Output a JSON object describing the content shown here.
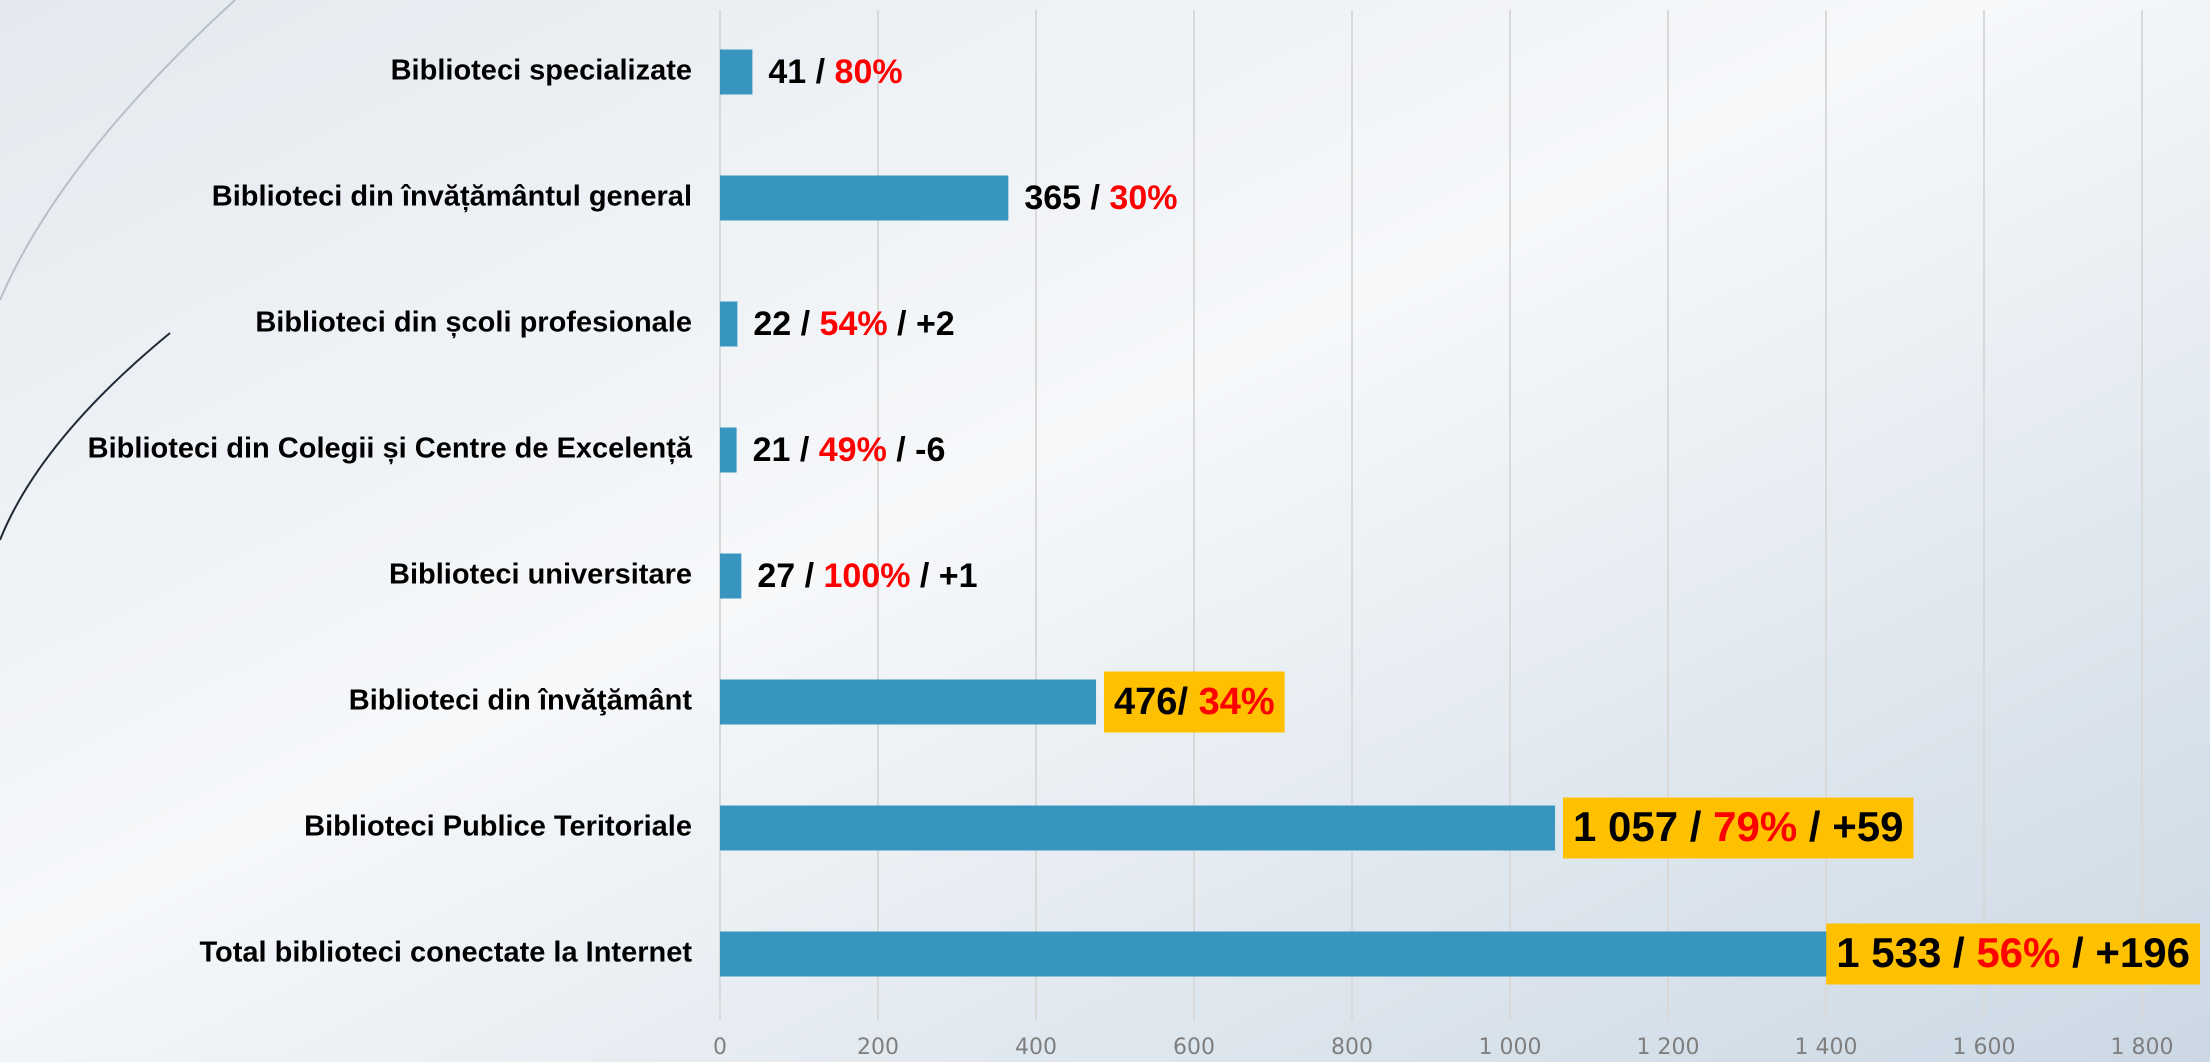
{
  "chart_data": {
    "type": "hbar",
    "categories": [
      "Biblioteci specializate",
      "Biblioteci din învățământul general",
      "Biblioteci din școli profesionale",
      "Biblioteci din Colegii și Centre de Excelență",
      "Biblioteci universitare",
      "Biblioteci din învăţământ",
      "Biblioteci Publice Teritoriale",
      "Total  biblioteci conectate la Internet"
    ],
    "values": [
      41,
      365,
      22,
      21,
      27,
      476,
      1057,
      1533
    ],
    "value_labels": [
      "41",
      "365",
      "22",
      "21",
      "27",
      "476",
      "1 057",
      "1 533"
    ],
    "label_suffixes": [
      [
        {
          "text": " / "
        },
        {
          "text": "80%",
          "color": "#ff0000"
        }
      ],
      [
        {
          "text": " / "
        },
        {
          "text": "30%",
          "color": "#ff0000"
        }
      ],
      [
        {
          "text": " / "
        },
        {
          "text": "54%",
          "color": "#ff0000"
        },
        {
          "text": " / +2"
        }
      ],
      [
        {
          "text": " / "
        },
        {
          "text": "49%",
          "color": "#ff0000"
        },
        {
          "text": " / -6"
        }
      ],
      [
        {
          "text": " / "
        },
        {
          "text": "100%",
          "color": "#ff0000"
        },
        {
          "text": " / +1"
        }
      ],
      [
        {
          "text": "/ "
        },
        {
          "text": "34%",
          "color": "#ff0000"
        }
      ],
      [
        {
          "text": " / "
        },
        {
          "text": "79%",
          "color": "#ff0000"
        },
        {
          "text": " / +59"
        }
      ],
      [
        {
          "text": " / "
        },
        {
          "text": "56%",
          "color": "#ff0000"
        },
        {
          "text": " / +196"
        }
      ]
    ],
    "highlight": [
      false,
      false,
      false,
      false,
      false,
      true,
      true,
      true
    ],
    "highlight_color": "#ffc000",
    "color": "#3795bf",
    "xlim": [
      0,
      1800
    ],
    "xticks": [
      0,
      200,
      400,
      600,
      800,
      {
        "value": 1000,
        "label": "1 000"
      },
      {
        "value": 1200,
        "label": "1 200"
      },
      {
        "value": 1400,
        "label": "1 400"
      },
      {
        "value": 1600,
        "label": "1 600"
      },
      {
        "value": 1800,
        "label": "1 800"
      }
    ],
    "grid": true
  }
}
